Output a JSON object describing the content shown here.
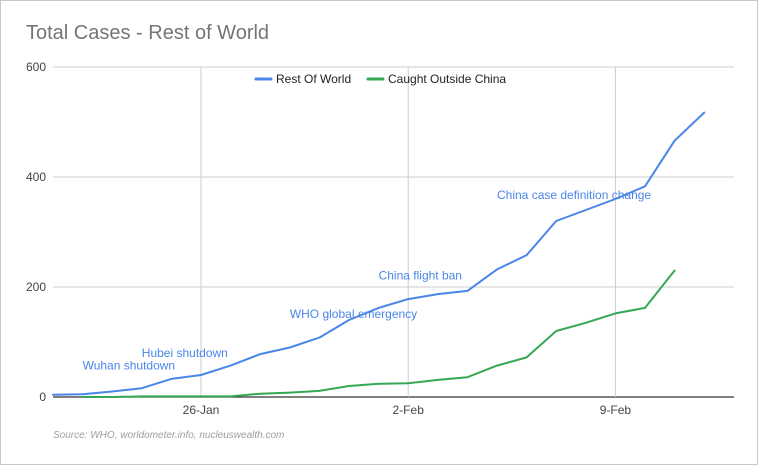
{
  "chart_data": {
    "type": "line",
    "title": "Total Cases - Rest of World",
    "source": "Source: WHO, worldometer.info, nucleuswealth.com",
    "x": [
      "21-Jan",
      "22-Jan",
      "23-Jan",
      "24-Jan",
      "25-Jan",
      "26-Jan",
      "27-Jan",
      "28-Jan",
      "29-Jan",
      "30-Jan",
      "31-Jan",
      "1-Feb",
      "2-Feb",
      "3-Feb",
      "4-Feb",
      "5-Feb",
      "6-Feb",
      "7-Feb",
      "8-Feb",
      "9-Feb",
      "10-Feb",
      "11-Feb",
      "12-Feb"
    ],
    "x_tick_labels": [
      "26-Jan",
      "2-Feb",
      "9-Feb"
    ],
    "x_tick_positions": [
      "26-Jan",
      "2-Feb",
      "9-Feb"
    ],
    "y_ticks": [
      0,
      200,
      400,
      600
    ],
    "ylim": [
      0,
      600
    ],
    "grid": true,
    "legend_position": "top",
    "series": [
      {
        "name": "Rest Of World",
        "color": "#4a86e8",
        "values": [
          4,
          5,
          10,
          16,
          33,
          40,
          57,
          78,
          90,
          108,
          140,
          162,
          178,
          187,
          193,
          232,
          258,
          320,
          340,
          360,
          383,
          466,
          517
        ]
      },
      {
        "name": "Caught Outside China",
        "color": "#34a853",
        "values": [
          null,
          0,
          0,
          1,
          1,
          1,
          1,
          6,
          8,
          11,
          20,
          24,
          25,
          31,
          36,
          57,
          72,
          120,
          135,
          152,
          162,
          230,
          null
        ]
      }
    ],
    "annotations": [
      {
        "text": "Wuhan shutdown",
        "x": "22-Jan",
        "y": 50
      },
      {
        "text": "Hubei shutdown",
        "x": "24-Jan",
        "y": 73
      },
      {
        "text": "WHO global emergency",
        "x": "29-Jan",
        "y": 144
      },
      {
        "text": "China flight ban",
        "x": "1-Feb",
        "y": 214
      },
      {
        "text": "China case definition change",
        "x": "5-Feb",
        "y": 360
      }
    ]
  }
}
